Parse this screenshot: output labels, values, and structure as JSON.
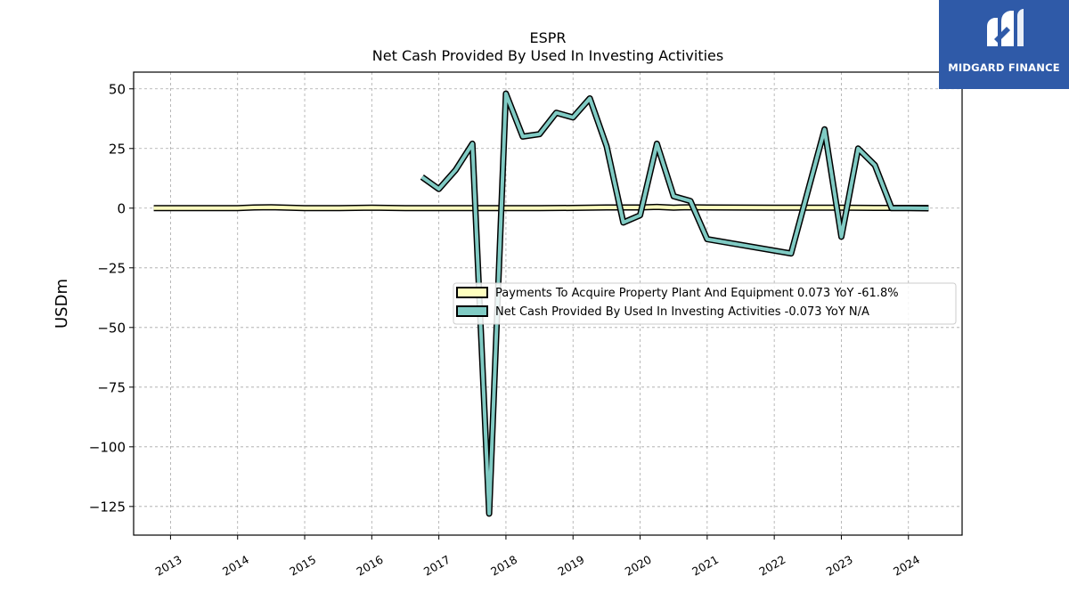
{
  "chart_data": {
    "type": "line",
    "title": "ESPR",
    "subtitle": "Net Cash Provided By Used In Investing Activities",
    "ylabel": "USDm",
    "xlabel": "",
    "ylim": [
      -137,
      57
    ],
    "xlim": [
      2012.45,
      2024.8
    ],
    "yticks": [
      50,
      25,
      0,
      -25,
      -50,
      -75,
      -100,
      -125
    ],
    "ytick_labels": [
      "50",
      "25",
      "0",
      "−25",
      "−50",
      "−75",
      "−100",
      "−125"
    ],
    "xticks": [
      2013,
      2014,
      2015,
      2016,
      2017,
      2018,
      2019,
      2020,
      2021,
      2022,
      2023,
      2024
    ],
    "xtick_labels": [
      "2013",
      "2014",
      "2015",
      "2016",
      "2017",
      "2018",
      "2019",
      "2020",
      "2021",
      "2022",
      "2023",
      "2024"
    ],
    "grid": true,
    "legend_placement": "center-right",
    "series": [
      {
        "name": "Payments To Acquire Property Plant And Equipment  0.073 YoY -61.8%",
        "color": "#ffffbf",
        "x": [
          2012.75,
          2013.0,
          2013.5,
          2014.0,
          2014.25,
          2014.5,
          2015.0,
          2015.5,
          2016.0,
          2016.5,
          2016.75,
          2017.0,
          2017.5,
          2018.0,
          2018.5,
          2019.0,
          2019.5,
          2019.75,
          2020.0,
          2020.25,
          2020.5,
          2020.75,
          2021.0,
          2022.0,
          2022.5,
          2023.0,
          2023.5,
          2023.75,
          2024.0,
          2024.3
        ],
        "y": [
          0,
          0,
          0,
          0,
          0.3,
          0.4,
          0,
          0,
          0.2,
          0,
          0,
          0,
          0,
          0,
          0,
          0.1,
          0.3,
          0.3,
          0.3,
          0.5,
          0.2,
          0.4,
          0.3,
          0.2,
          0.2,
          0.2,
          0.1,
          0.1,
          0.1,
          0.073
        ]
      },
      {
        "name": "Net Cash Provided By Used In Investing Activities  -0.073 YoY N/A",
        "color": "#80cbc4",
        "x": [
          2016.75,
          2017.0,
          2017.25,
          2017.5,
          2017.75,
          2018.0,
          2018.25,
          2018.5,
          2018.75,
          2019.0,
          2019.25,
          2019.5,
          2019.75,
          2020.0,
          2020.25,
          2020.5,
          2020.75,
          2021.0,
          2022.25,
          2022.5,
          2022.75,
          2023.0,
          2023.25,
          2023.5,
          2023.75,
          2024.0,
          2024.3
        ],
        "y": [
          13,
          8,
          16,
          27,
          -128,
          48,
          30,
          31,
          40,
          38,
          46,
          26,
          -6,
          -3,
          27,
          5,
          3,
          -13,
          -19,
          7,
          33,
          -12,
          25,
          18,
          0,
          0,
          -0.073
        ]
      }
    ]
  },
  "logo": {
    "text": "MIDGARD FINANCE"
  }
}
